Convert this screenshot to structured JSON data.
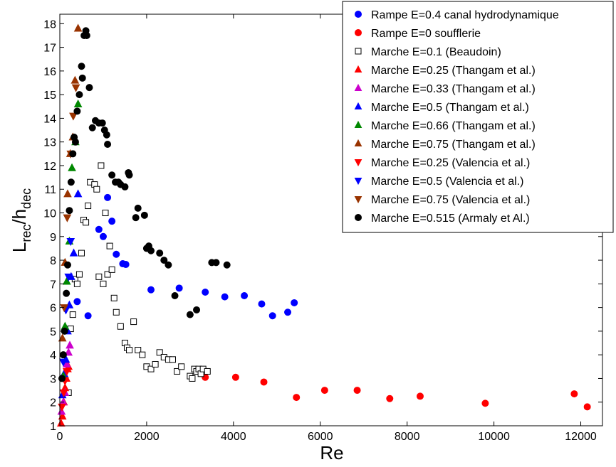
{
  "chart_data": {
    "type": "scatter",
    "xlabel": "Re",
    "ylabel_main": "L",
    "ylabel_sub1": "rec",
    "ylabel_slash": "/h",
    "ylabel_sub2": "dec",
    "xlim": [
      0,
      12500
    ],
    "ylim": [
      1,
      18.4
    ],
    "xticks": [
      0,
      2000,
      4000,
      6000,
      8000,
      10000,
      12000
    ],
    "yticks": [
      1,
      2,
      3,
      4,
      5,
      6,
      7,
      8,
      9,
      10,
      11,
      12,
      13,
      14,
      15,
      16,
      17,
      18
    ],
    "grid": false,
    "legend_position": "top-right",
    "series": [
      {
        "name": "Rampe E=0.4 canal hydrodynamique",
        "marker": "circle",
        "color": "#0000ff",
        "filled": true,
        "x": [
          650,
          400,
          1100,
          900,
          1000,
          1200,
          1300,
          1450,
          1520,
          2100,
          2750,
          3350,
          3800,
          4250,
          4650,
          4900,
          5250,
          5400
        ],
        "y": [
          5.65,
          6.25,
          10.65,
          9.3,
          9.0,
          9.65,
          8.25,
          7.85,
          7.82,
          6.75,
          6.82,
          6.65,
          6.45,
          6.5,
          6.15,
          5.65,
          5.8,
          6.2
        ]
      },
      {
        "name": "Rampe E=0 soufflerie",
        "marker": "circle",
        "color": "#ff0000",
        "filled": true,
        "x": [
          3350,
          4050,
          4700,
          5450,
          6100,
          6850,
          7600,
          8300,
          9800,
          11850,
          12150
        ],
        "y": [
          3.05,
          3.05,
          2.85,
          2.2,
          2.5,
          2.5,
          2.15,
          2.25,
          1.95,
          2.35,
          1.8
        ]
      },
      {
        "name": "Marche E=0.1 (Beaudoin)",
        "marker": "square",
        "color": "#000000",
        "filled": false,
        "x": [
          200,
          250,
          300,
          350,
          400,
          450,
          500,
          550,
          600,
          650,
          700,
          800,
          850,
          900,
          950,
          1000,
          1050,
          1100,
          1150,
          1200,
          1250,
          1300,
          1400,
          1500,
          1550,
          1600,
          1700,
          1800,
          1900,
          2000,
          2100,
          2200,
          2300,
          2400,
          2500,
          2600,
          2700,
          2800,
          3000,
          3050,
          3100,
          3150,
          3200,
          3250,
          3300,
          3400
        ],
        "y": [
          2.4,
          5.1,
          5.7,
          7.2,
          7.0,
          7.4,
          8.3,
          9.7,
          9.6,
          10.3,
          11.3,
          11.2,
          11.0,
          7.3,
          12.0,
          7.0,
          10.0,
          7.4,
          8.6,
          7.6,
          6.4,
          5.8,
          5.2,
          4.5,
          4.3,
          4.2,
          5.4,
          4.2,
          4.0,
          3.5,
          3.4,
          3.6,
          4.1,
          3.9,
          3.8,
          3.8,
          3.3,
          3.5,
          3.1,
          3.0,
          3.4,
          3.3,
          3.4,
          3.2,
          3.4,
          3.3
        ]
      },
      {
        "name": "Marche E=0.25 (Thangam et al.)",
        "marker": "triangle-up",
        "color": "#ff0000",
        "filled": true,
        "x": [
          30,
          60,
          90,
          120,
          150,
          180,
          200
        ],
        "y": [
          1.1,
          1.4,
          2.0,
          2.6,
          3.0,
          3.4,
          3.5
        ]
      },
      {
        "name": "Marche E=0.33 (Thangam et al.)",
        "marker": "triangle-up",
        "color": "#cc00cc",
        "filled": true,
        "x": [
          40,
          80,
          120,
          160,
          200,
          230
        ],
        "y": [
          1.6,
          2.0,
          2.4,
          3.6,
          4.1,
          4.4
        ]
      },
      {
        "name": "Marche E=0.5 (Thangam et al.)",
        "marker": "triangle-up",
        "color": "#0000ff",
        "filled": true,
        "x": [
          60,
          100,
          140,
          180,
          220,
          260,
          320,
          420
        ],
        "y": [
          2.3,
          3.2,
          3.8,
          5.0,
          6.1,
          7.3,
          8.3,
          10.8
        ]
      },
      {
        "name": "Marche E=0.66 (Thangam et al.)",
        "marker": "triangle-up",
        "color": "#008800",
        "filled": true,
        "x": [
          80,
          120,
          160,
          220,
          280,
          360,
          420
        ],
        "y": [
          3.1,
          5.2,
          7.1,
          8.8,
          11.9,
          13.0,
          14.6
        ]
      },
      {
        "name": "Marche E=0.75 (Thangam et al.)",
        "marker": "triangle-up",
        "color": "#993300",
        "filled": true,
        "x": [
          60,
          120,
          180,
          240,
          300,
          350,
          420
        ],
        "y": [
          4.7,
          7.9,
          10.8,
          12.5,
          13.2,
          15.6,
          17.8
        ]
      },
      {
        "name": "Marche E=0.25 (Valencia et al.)",
        "marker": "triangle-down",
        "color": "#ff0000",
        "filled": true,
        "x": [
          50,
          90,
          120,
          160
        ],
        "y": [
          1.8,
          2.4,
          2.9,
          3.3
        ]
      },
      {
        "name": "Marche E=0.5 (Valencia et al.)",
        "marker": "triangle-down",
        "color": "#0000ff",
        "filled": true,
        "x": [
          80,
          140,
          200,
          250
        ],
        "y": [
          3.7,
          5.9,
          7.3,
          8.8
        ]
      },
      {
        "name": "Marche E=0.75 (Valencia et al.)",
        "marker": "triangle-down",
        "color": "#993300",
        "filled": true,
        "x": [
          100,
          170,
          250,
          310,
          370
        ],
        "y": [
          6.0,
          9.8,
          12.5,
          14.1,
          15.3
        ]
      },
      {
        "name": "Marche E=0.515 (Armaly et Al.)",
        "marker": "circle",
        "color": "#000000",
        "filled": true,
        "x": [
          50,
          80,
          110,
          150,
          180,
          220,
          260,
          300,
          330,
          360,
          400,
          450,
          500,
          520,
          560,
          600,
          620,
          680,
          750,
          820,
          900,
          980,
          1030,
          1080,
          1100,
          1200,
          1280,
          1350,
          1400,
          1500,
          1580,
          1600,
          1750,
          1800,
          1950,
          2000,
          2050,
          2100,
          2300,
          2400,
          2500,
          2650,
          3000,
          3150,
          3500,
          3600,
          3850
        ],
        "y": [
          3.0,
          4.0,
          5.0,
          6.6,
          7.8,
          10.1,
          11.3,
          12.5,
          13.2,
          13.0,
          14.3,
          15.0,
          16.2,
          15.7,
          17.5,
          17.7,
          17.5,
          15.3,
          13.6,
          13.9,
          13.8,
          13.8,
          13.5,
          13.3,
          12.9,
          11.6,
          11.3,
          11.3,
          11.2,
          11.1,
          11.7,
          11.6,
          9.8,
          10.2,
          9.9,
          8.5,
          8.6,
          8.4,
          8.3,
          8.0,
          7.8,
          6.5,
          5.7,
          5.9,
          7.9,
          7.9,
          7.8
        ]
      }
    ]
  }
}
